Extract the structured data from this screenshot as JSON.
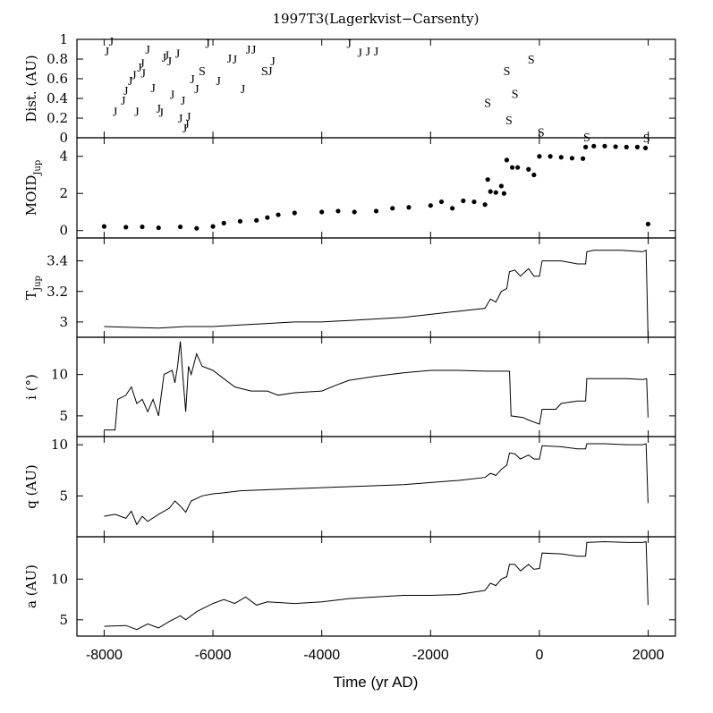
{
  "title": "1997T3(Lagerkvist−Carsenty)",
  "xlabel": "Time (yr AD)",
  "x_ticks": [
    -8000,
    -6000,
    -4000,
    -2000,
    0,
    2000
  ],
  "x_tick_labels": [
    "-8000",
    "-6000",
    "-4000",
    "-2000",
    "0",
    "2000"
  ],
  "xlim": [
    -8500,
    2500
  ],
  "chart_data": [
    {
      "type": "scatter",
      "ylabel": "Dist. (AU)",
      "ylim": [
        0,
        1.0
      ],
      "y_ticks": [
        0,
        0.2,
        0.4,
        0.6,
        0.8,
        1
      ],
      "y_tick_labels": [
        "0",
        "0.2",
        "0.4",
        "0.6",
        "0.8",
        "1"
      ],
      "points": [
        {
          "x": -7950,
          "y": 0.88,
          "label": "J"
        },
        {
          "x": -7870,
          "y": 0.98,
          "label": "J"
        },
        {
          "x": -7800,
          "y": 0.27,
          "label": "J"
        },
        {
          "x": -7650,
          "y": 0.38,
          "label": "J"
        },
        {
          "x": -7600,
          "y": 0.48,
          "label": "J"
        },
        {
          "x": -7520,
          "y": 0.58,
          "label": "J"
        },
        {
          "x": -7450,
          "y": 0.64,
          "label": "J"
        },
        {
          "x": -7400,
          "y": 0.27,
          "label": "J"
        },
        {
          "x": -7350,
          "y": 0.72,
          "label": "J"
        },
        {
          "x": -7300,
          "y": 0.76,
          "label": "J"
        },
        {
          "x": -7280,
          "y": 0.66,
          "label": "J"
        },
        {
          "x": -7200,
          "y": 0.9,
          "label": "J"
        },
        {
          "x": -7100,
          "y": 0.51,
          "label": "J"
        },
        {
          "x": -7000,
          "y": 0.3,
          "label": "J"
        },
        {
          "x": -6950,
          "y": 0.26,
          "label": "J"
        },
        {
          "x": -6900,
          "y": 0.82,
          "label": "J"
        },
        {
          "x": -6850,
          "y": 0.84,
          "label": "J"
        },
        {
          "x": -6800,
          "y": 0.78,
          "label": "J"
        },
        {
          "x": -6750,
          "y": 0.44,
          "label": "J"
        },
        {
          "x": -6650,
          "y": 0.86,
          "label": "J"
        },
        {
          "x": -6600,
          "y": 0.2,
          "label": "J"
        },
        {
          "x": -6550,
          "y": 0.38,
          "label": "J"
        },
        {
          "x": -6520,
          "y": 0.1,
          "label": "J"
        },
        {
          "x": -6480,
          "y": 0.14,
          "label": "J"
        },
        {
          "x": -6450,
          "y": 0.22,
          "label": "J"
        },
        {
          "x": -6380,
          "y": 0.6,
          "label": "J"
        },
        {
          "x": -6300,
          "y": 0.5,
          "label": "J"
        },
        {
          "x": -6200,
          "y": 0.68,
          "label": "S"
        },
        {
          "x": -6100,
          "y": 0.96,
          "label": "J"
        },
        {
          "x": -5900,
          "y": 0.58,
          "label": "J"
        },
        {
          "x": -5700,
          "y": 0.81,
          "label": "J"
        },
        {
          "x": -5600,
          "y": 0.8,
          "label": "J"
        },
        {
          "x": -5450,
          "y": 0.5,
          "label": "J"
        },
        {
          "x": -5350,
          "y": 0.9,
          "label": "J"
        },
        {
          "x": -5250,
          "y": 0.9,
          "label": "J"
        },
        {
          "x": -5050,
          "y": 0.68,
          "label": "S"
        },
        {
          "x": -4950,
          "y": 0.68,
          "label": "J"
        },
        {
          "x": -4900,
          "y": 0.78,
          "label": "J"
        },
        {
          "x": -3500,
          "y": 0.96,
          "label": "J"
        },
        {
          "x": -3300,
          "y": 0.87,
          "label": "J"
        },
        {
          "x": -3150,
          "y": 0.88,
          "label": "J"
        },
        {
          "x": -3000,
          "y": 0.88,
          "label": "J"
        },
        {
          "x": -950,
          "y": 0.36,
          "label": "S"
        },
        {
          "x": -600,
          "y": 0.68,
          "label": "S"
        },
        {
          "x": -560,
          "y": 0.18,
          "label": "S"
        },
        {
          "x": -450,
          "y": 0.45,
          "label": "S"
        },
        {
          "x": -150,
          "y": 0.8,
          "label": "S"
        },
        {
          "x": 30,
          "y": 0.06,
          "label": "S"
        },
        {
          "x": 870,
          "y": 0.01,
          "label": "S"
        },
        {
          "x": 1970,
          "y": 0.0,
          "label": "S"
        }
      ]
    },
    {
      "type": "scatter",
      "ylabel_main": "MOID",
      "ylabel_sub": "Jup",
      "ylim": [
        -0.4,
        5.0
      ],
      "y_ticks": [
        0,
        2,
        4
      ],
      "y_tick_labels": [
        "0",
        "2",
        "4"
      ],
      "points": [
        [
          -8000,
          0.22
        ],
        [
          -7600,
          0.18
        ],
        [
          -7300,
          0.2
        ],
        [
          -7000,
          0.15
        ],
        [
          -6600,
          0.2
        ],
        [
          -6300,
          0.12
        ],
        [
          -6000,
          0.22
        ],
        [
          -5800,
          0.4
        ],
        [
          -5500,
          0.5
        ],
        [
          -5200,
          0.55
        ],
        [
          -5000,
          0.7
        ],
        [
          -4800,
          0.85
        ],
        [
          -4500,
          0.95
        ],
        [
          -4000,
          1.0
        ],
        [
          -3700,
          1.05
        ],
        [
          -3400,
          1.0
        ],
        [
          -3000,
          1.05
        ],
        [
          -2700,
          1.2
        ],
        [
          -2400,
          1.25
        ],
        [
          -2000,
          1.35
        ],
        [
          -1800,
          1.55
        ],
        [
          -1600,
          1.2
        ],
        [
          -1400,
          1.6
        ],
        [
          -1200,
          1.55
        ],
        [
          -1000,
          1.4
        ],
        [
          -950,
          2.75
        ],
        [
          -900,
          2.1
        ],
        [
          -800,
          2.05
        ],
        [
          -700,
          2.4
        ],
        [
          -650,
          2.0
        ],
        [
          -600,
          3.8
        ],
        [
          -500,
          3.4
        ],
        [
          -400,
          3.4
        ],
        [
          -200,
          3.3
        ],
        [
          -100,
          3.0
        ],
        [
          0,
          4.0
        ],
        [
          200,
          4.0
        ],
        [
          400,
          3.95
        ],
        [
          600,
          3.9
        ],
        [
          800,
          3.88
        ],
        [
          850,
          4.5
        ],
        [
          1000,
          4.55
        ],
        [
          1200,
          4.55
        ],
        [
          1400,
          4.52
        ],
        [
          1600,
          4.5
        ],
        [
          1800,
          4.5
        ],
        [
          1950,
          4.45
        ],
        [
          1997,
          0.35
        ]
      ]
    },
    {
      "type": "line",
      "ylabel_main": "T",
      "ylabel_sub": "Jup",
      "ylim": [
        2.9,
        3.55
      ],
      "y_ticks": [
        3,
        3.2,
        3.4
      ],
      "y_tick_labels": [
        "3",
        "3.2",
        "3.4"
      ],
      "points": [
        [
          -8000,
          2.97
        ],
        [
          -7000,
          2.96
        ],
        [
          -6500,
          2.97
        ],
        [
          -6000,
          2.97
        ],
        [
          -5500,
          2.98
        ],
        [
          -5000,
          2.99
        ],
        [
          -4500,
          3.0
        ],
        [
          -4000,
          3.0
        ],
        [
          -3500,
          3.01
        ],
        [
          -3000,
          3.02
        ],
        [
          -2500,
          3.03
        ],
        [
          -2000,
          3.05
        ],
        [
          -1500,
          3.07
        ],
        [
          -1000,
          3.09
        ],
        [
          -900,
          3.15
        ],
        [
          -800,
          3.13
        ],
        [
          -700,
          3.2
        ],
        [
          -600,
          3.22
        ],
        [
          -550,
          3.33
        ],
        [
          -450,
          3.34
        ],
        [
          -350,
          3.3
        ],
        [
          -200,
          3.35
        ],
        [
          -100,
          3.3
        ],
        [
          0,
          3.3
        ],
        [
          50,
          3.4
        ],
        [
          400,
          3.4
        ],
        [
          700,
          3.38
        ],
        [
          850,
          3.38
        ],
        [
          870,
          3.46
        ],
        [
          1000,
          3.47
        ],
        [
          1500,
          3.47
        ],
        [
          1900,
          3.46
        ],
        [
          1960,
          3.47
        ],
        [
          1997,
          2.9
        ]
      ]
    },
    {
      "type": "line",
      "ylabel": "i (°)",
      "ylim": [
        2.5,
        14.5
      ],
      "y_ticks": [
        5,
        10
      ],
      "y_tick_labels": [
        "5",
        "10"
      ],
      "points": [
        [
          -8000,
          3.3
        ],
        [
          -7800,
          3.3
        ],
        [
          -7750,
          7.0
        ],
        [
          -7600,
          7.5
        ],
        [
          -7500,
          8.5
        ],
        [
          -7400,
          6.5
        ],
        [
          -7300,
          7.0
        ],
        [
          -7200,
          5.5
        ],
        [
          -7100,
          7.0
        ],
        [
          -7000,
          5.0
        ],
        [
          -6900,
          10.0
        ],
        [
          -6750,
          10.5
        ],
        [
          -6700,
          9.0
        ],
        [
          -6650,
          11.0
        ],
        [
          -6600,
          14.0
        ],
        [
          -6550,
          9.5
        ],
        [
          -6500,
          5.5
        ],
        [
          -6450,
          11.0
        ],
        [
          -6400,
          10.0
        ],
        [
          -6300,
          12.5
        ],
        [
          -6200,
          11.0
        ],
        [
          -6000,
          10.5
        ],
        [
          -5800,
          9.5
        ],
        [
          -5600,
          8.5
        ],
        [
          -5300,
          8.0
        ],
        [
          -5000,
          8.0
        ],
        [
          -4800,
          7.5
        ],
        [
          -4500,
          7.8
        ],
        [
          -4000,
          8.0
        ],
        [
          -3700,
          8.8
        ],
        [
          -3500,
          9.3
        ],
        [
          -3000,
          9.8
        ],
        [
          -2500,
          10.2
        ],
        [
          -2000,
          10.5
        ],
        [
          -1500,
          10.5
        ],
        [
          -1000,
          10.4
        ],
        [
          -550,
          10.4
        ],
        [
          -520,
          5.0
        ],
        [
          -300,
          4.8
        ],
        [
          -200,
          4.5
        ],
        [
          0,
          4.0
        ],
        [
          50,
          5.8
        ],
        [
          300,
          5.8
        ],
        [
          400,
          6.5
        ],
        [
          700,
          6.8
        ],
        [
          850,
          6.8
        ],
        [
          870,
          9.5
        ],
        [
          1200,
          9.5
        ],
        [
          1600,
          9.5
        ],
        [
          1900,
          9.4
        ],
        [
          1970,
          9.5
        ],
        [
          1997,
          4.8
        ]
      ]
    },
    {
      "type": "line",
      "ylabel": "q (AU)",
      "ylim": [
        1.0,
        10.8
      ],
      "y_ticks": [
        5,
        10
      ],
      "y_tick_labels": [
        "5",
        "10"
      ],
      "points": [
        [
          -8000,
          3.0
        ],
        [
          -7800,
          3.2
        ],
        [
          -7600,
          2.8
        ],
        [
          -7500,
          3.5
        ],
        [
          -7400,
          2.2
        ],
        [
          -7300,
          3.0
        ],
        [
          -7200,
          2.5
        ],
        [
          -7000,
          3.2
        ],
        [
          -6800,
          3.8
        ],
        [
          -6700,
          4.5
        ],
        [
          -6600,
          4.0
        ],
        [
          -6500,
          3.4
        ],
        [
          -6400,
          4.5
        ],
        [
          -6200,
          5.0
        ],
        [
          -6000,
          5.2
        ],
        [
          -5800,
          5.3
        ],
        [
          -5500,
          5.5
        ],
        [
          -5000,
          5.6
        ],
        [
          -4500,
          5.7
        ],
        [
          -4000,
          5.8
        ],
        [
          -3500,
          5.9
        ],
        [
          -3000,
          6.0
        ],
        [
          -2500,
          6.1
        ],
        [
          -2000,
          6.3
        ],
        [
          -1500,
          6.5
        ],
        [
          -1000,
          6.8
        ],
        [
          -900,
          7.2
        ],
        [
          -800,
          7.0
        ],
        [
          -700,
          7.6
        ],
        [
          -600,
          8.0
        ],
        [
          -550,
          9.2
        ],
        [
          -450,
          9.1
        ],
        [
          -350,
          8.6
        ],
        [
          -200,
          9.0
        ],
        [
          -100,
          8.6
        ],
        [
          0,
          8.6
        ],
        [
          50,
          9.9
        ],
        [
          400,
          9.8
        ],
        [
          700,
          9.6
        ],
        [
          850,
          9.6
        ],
        [
          870,
          10.1
        ],
        [
          1200,
          10.1
        ],
        [
          1600,
          10.0
        ],
        [
          1900,
          10.0
        ],
        [
          1960,
          10.1
        ],
        [
          1997,
          4.3
        ]
      ]
    },
    {
      "type": "line",
      "ylabel": "a (AU)",
      "ylim": [
        3.0,
        15.2
      ],
      "y_ticks": [
        5,
        10
      ],
      "y_tick_labels": [
        "5",
        "10"
      ],
      "points": [
        [
          -8000,
          4.2
        ],
        [
          -7600,
          4.3
        ],
        [
          -7400,
          3.8
        ],
        [
          -7200,
          4.5
        ],
        [
          -7000,
          4.0
        ],
        [
          -6800,
          4.8
        ],
        [
          -6600,
          5.5
        ],
        [
          -6500,
          5.0
        ],
        [
          -6300,
          6.0
        ],
        [
          -6000,
          7.0
        ],
        [
          -5800,
          7.5
        ],
        [
          -5600,
          7.0
        ],
        [
          -5400,
          7.8
        ],
        [
          -5200,
          6.8
        ],
        [
          -5000,
          7.2
        ],
        [
          -4500,
          7.0
        ],
        [
          -4000,
          7.2
        ],
        [
          -3500,
          7.6
        ],
        [
          -3000,
          7.8
        ],
        [
          -2500,
          8.0
        ],
        [
          -2000,
          8.0
        ],
        [
          -1500,
          8.1
        ],
        [
          -1000,
          8.6
        ],
        [
          -900,
          9.5
        ],
        [
          -800,
          9.2
        ],
        [
          -700,
          10.0
        ],
        [
          -600,
          10.3
        ],
        [
          -550,
          11.8
        ],
        [
          -450,
          11.8
        ],
        [
          -350,
          11.0
        ],
        [
          -200,
          11.8
        ],
        [
          -100,
          11.2
        ],
        [
          0,
          11.3
        ],
        [
          50,
          13.2
        ],
        [
          400,
          13.1
        ],
        [
          700,
          12.8
        ],
        [
          850,
          12.8
        ],
        [
          870,
          14.5
        ],
        [
          1200,
          14.6
        ],
        [
          1600,
          14.5
        ],
        [
          1900,
          14.5
        ],
        [
          1960,
          14.6
        ],
        [
          1997,
          6.8
        ]
      ]
    }
  ]
}
